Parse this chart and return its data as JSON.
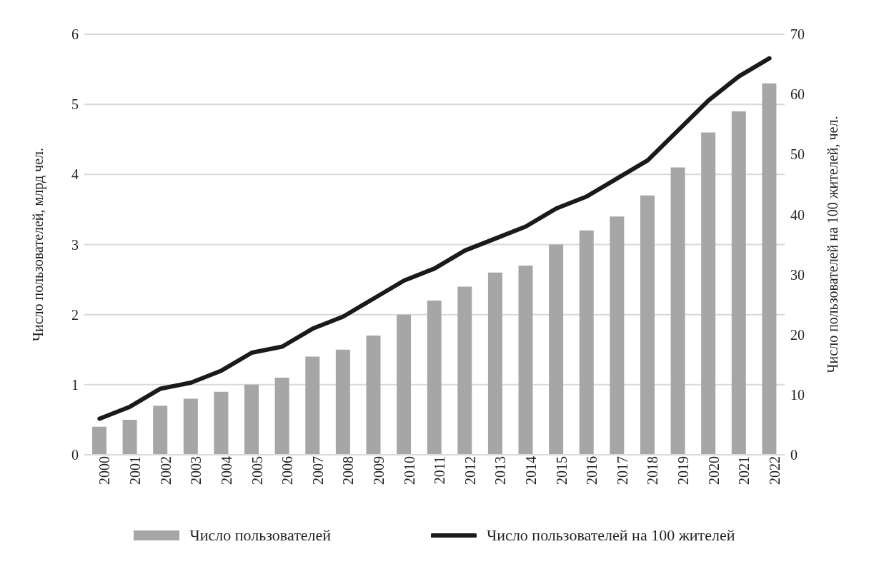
{
  "chart_data": {
    "type": "bar",
    "ylabel": "Число пользователей, млрд чел.",
    "y2label": "Число пользователей на 100 жителей, чел.",
    "categories": [
      "2000",
      "2001",
      "2002",
      "2003",
      "2004",
      "2005",
      "2006",
      "2007",
      "2008",
      "2009",
      "2010",
      "2011",
      "2012",
      "2013",
      "2014",
      "2015",
      "2016",
      "2017",
      "2018",
      "2019",
      "2020",
      "2021",
      "2022"
    ],
    "series": [
      {
        "name": "Число пользователей",
        "color": "#a6a6a6",
        "values": [
          0.4,
          0.5,
          0.7,
          0.8,
          0.9,
          1.0,
          1.1,
          1.4,
          1.5,
          1.7,
          2.0,
          2.2,
          2.4,
          2.6,
          2.7,
          3.0,
          3.2,
          3.4,
          3.7,
          4.1,
          4.6,
          4.9,
          5.3
        ]
      },
      {
        "name": "Число пользователей на 100 жителей",
        "type": "line",
        "axis": "y2",
        "color": "#1a1a1a",
        "values": [
          6,
          8,
          11,
          12,
          14,
          17,
          18,
          21,
          23,
          26,
          29,
          31,
          34,
          36,
          38,
          41,
          43,
          46,
          49,
          54,
          59,
          63,
          66
        ]
      }
    ],
    "ylim": [
      0,
      6
    ],
    "yticks": [
      0,
      1,
      2,
      3,
      4,
      5,
      6
    ],
    "y2lim": [
      0,
      70
    ],
    "y2ticks": [
      0,
      10,
      20,
      30,
      40,
      50,
      60,
      70
    ],
    "grid": "y",
    "legend": "bottom"
  }
}
